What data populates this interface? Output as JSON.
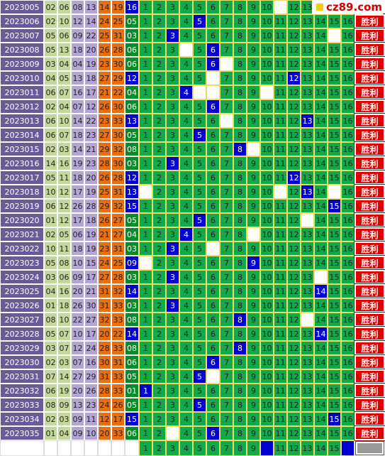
{
  "logo": "cz89.com",
  "rows": [
    {
      "issue": "2023005",
      "reds": [
        "02",
        "06",
        "08",
        "13",
        "14",
        "19"
      ],
      "blue": "16",
      "cells": [
        1,
        2,
        3,
        4,
        5,
        6,
        7,
        8,
        9,
        10,
        null,
        12,
        13,
        14,
        15,
        16
      ]
    },
    {
      "issue": "2023006",
      "reds": [
        "02",
        "10",
        "12",
        "14",
        "24",
        "25"
      ],
      "blue": "05",
      "cells": [
        1,
        2,
        3,
        4,
        5,
        6,
        7,
        8,
        9,
        10,
        11,
        12,
        13,
        14,
        15,
        16
      ],
      "result": "胜利"
    },
    {
      "issue": "2023007",
      "reds": [
        "05",
        "06",
        "09",
        "22",
        "25",
        "31"
      ],
      "blue": "03",
      "cells": [
        1,
        2,
        3,
        4,
        5,
        6,
        7,
        8,
        9,
        10,
        11,
        12,
        13,
        14,
        null,
        16
      ],
      "result": "胜利"
    },
    {
      "issue": "2023008",
      "reds": [
        "05",
        "13",
        "18",
        "20",
        "26",
        "28"
      ],
      "blue": "06",
      "cells": [
        1,
        2,
        3,
        null,
        5,
        6,
        7,
        8,
        9,
        10,
        11,
        12,
        13,
        14,
        15,
        16
      ],
      "result": "胜利"
    },
    {
      "issue": "2023009",
      "reds": [
        "03",
        "04",
        "04",
        "19",
        "23",
        "30"
      ],
      "blue": "06",
      "cells": [
        1,
        2,
        3,
        4,
        5,
        6,
        null,
        8,
        9,
        10,
        11,
        12,
        13,
        14,
        15,
        16
      ],
      "result": "胜利"
    },
    {
      "issue": "2023010",
      "reds": [
        "04",
        "05",
        "13",
        "18",
        "27",
        "29"
      ],
      "blue": "12",
      "cells": [
        1,
        2,
        3,
        4,
        5,
        null,
        7,
        8,
        9,
        10,
        11,
        12,
        13,
        14,
        15,
        16
      ],
      "result": "胜利"
    },
    {
      "issue": "2023011",
      "reds": [
        "06",
        "07",
        "16",
        "17",
        "21",
        "22"
      ],
      "blue": "04",
      "cells": [
        1,
        2,
        3,
        4,
        null,
        null,
        7,
        8,
        9,
        null,
        11,
        12,
        13,
        14,
        15,
        16
      ],
      "result": "胜利"
    },
    {
      "issue": "2023012",
      "reds": [
        "02",
        "04",
        "07",
        "12",
        "26",
        "30"
      ],
      "blue": "06",
      "cells": [
        1,
        2,
        3,
        4,
        5,
        6,
        7,
        8,
        9,
        10,
        11,
        12,
        13,
        14,
        15,
        16
      ],
      "result": "胜利"
    },
    {
      "issue": "2023013",
      "reds": [
        "06",
        "10",
        "14",
        "22",
        "23",
        "33"
      ],
      "blue": "13",
      "cells": [
        1,
        2,
        3,
        4,
        5,
        6,
        null,
        8,
        9,
        10,
        11,
        12,
        13,
        14,
        15,
        16
      ],
      "result": "胜利"
    },
    {
      "issue": "2023014",
      "reds": [
        "06",
        "07",
        "18",
        "23",
        "27",
        "30"
      ],
      "blue": "05",
      "cells": [
        1,
        2,
        3,
        4,
        5,
        6,
        7,
        8,
        9,
        10,
        11,
        12,
        13,
        14,
        15,
        16
      ],
      "result": "胜利"
    },
    {
      "issue": "2023015",
      "reds": [
        "02",
        "03",
        "14",
        "21",
        "29",
        "32"
      ],
      "blue": "08",
      "cells": [
        1,
        2,
        3,
        4,
        5,
        6,
        7,
        8,
        null,
        10,
        11,
        12,
        13,
        14,
        15,
        16
      ],
      "result": "胜利"
    },
    {
      "issue": "2023016",
      "reds": [
        "14",
        "16",
        "19",
        "23",
        "28",
        "30"
      ],
      "blue": "03",
      "cells": [
        1,
        2,
        3,
        4,
        5,
        6,
        7,
        8,
        9,
        10,
        11,
        12,
        13,
        14,
        15,
        16
      ],
      "result": "胜利"
    },
    {
      "issue": "2023017",
      "reds": [
        "05",
        "11",
        "18",
        "20",
        "26",
        "28"
      ],
      "blue": "12",
      "cells": [
        1,
        2,
        3,
        4,
        5,
        6,
        7,
        8,
        9,
        10,
        11,
        12,
        13,
        14,
        15,
        16
      ],
      "result": "胜利"
    },
    {
      "issue": "2023018",
      "reds": [
        "10",
        "12",
        "17",
        "19",
        "25",
        "31"
      ],
      "blue": "13",
      "cells": [
        null,
        2,
        3,
        4,
        5,
        6,
        7,
        8,
        9,
        10,
        null,
        12,
        13,
        14,
        null,
        16
      ],
      "result": "胜利"
    },
    {
      "issue": "2023019",
      "reds": [
        "06",
        "12",
        "26",
        "28",
        "29",
        "32"
      ],
      "blue": "15",
      "cells": [
        1,
        2,
        3,
        4,
        5,
        6,
        7,
        8,
        9,
        10,
        11,
        12,
        13,
        14,
        15,
        16
      ],
      "result": "胜利"
    },
    {
      "issue": "2023020",
      "reds": [
        "01",
        "12",
        "17",
        "18",
        "26",
        "27"
      ],
      "blue": "05",
      "cells": [
        1,
        2,
        3,
        4,
        5,
        6,
        7,
        8,
        9,
        10,
        11,
        12,
        null,
        14,
        15,
        16
      ],
      "result": "胜利"
    },
    {
      "issue": "2023021",
      "reds": [
        "02",
        "05",
        "06",
        "19",
        "21",
        "27"
      ],
      "blue": "04",
      "cells": [
        1,
        2,
        3,
        4,
        5,
        6,
        7,
        8,
        null,
        10,
        11,
        12,
        13,
        14,
        15,
        16
      ],
      "result": "胜利"
    },
    {
      "issue": "2023022",
      "reds": [
        "10",
        "11",
        "18",
        "19",
        "23",
        "31"
      ],
      "blue": "03",
      "cells": [
        1,
        2,
        3,
        4,
        5,
        null,
        7,
        8,
        9,
        10,
        11,
        12,
        13,
        14,
        15,
        16
      ],
      "result": "胜利"
    },
    {
      "issue": "2023023",
      "reds": [
        "05",
        "08",
        "10",
        "15",
        "24",
        "25"
      ],
      "blue": "09",
      "cells": [
        null,
        2,
        3,
        4,
        5,
        6,
        7,
        8,
        9,
        10,
        11,
        12,
        13,
        14,
        15,
        16
      ],
      "result": "胜利"
    },
    {
      "issue": "2023024",
      "reds": [
        "03",
        "06",
        "09",
        "17",
        "27",
        "28"
      ],
      "blue": "03",
      "cells": [
        1,
        2,
        3,
        4,
        5,
        6,
        7,
        8,
        9,
        10,
        11,
        12,
        13,
        null,
        15,
        16
      ],
      "result": "胜利"
    },
    {
      "issue": "2023025",
      "reds": [
        "04",
        "16",
        "20",
        "21",
        "31",
        "32"
      ],
      "blue": "14",
      "cells": [
        1,
        2,
        3,
        4,
        5,
        6,
        7,
        8,
        9,
        10,
        11,
        12,
        13,
        14,
        15,
        16
      ],
      "result": "胜利"
    },
    {
      "issue": "2023026",
      "reds": [
        "01",
        "18",
        "26",
        "30",
        "31",
        "33"
      ],
      "blue": "03",
      "cells": [
        1,
        2,
        3,
        4,
        5,
        6,
        7,
        8,
        9,
        10,
        11,
        12,
        13,
        14,
        15,
        16
      ],
      "result": "胜利"
    },
    {
      "issue": "2023027",
      "reds": [
        "08",
        "10",
        "22",
        "27",
        "32",
        "33"
      ],
      "blue": "08",
      "cells": [
        1,
        2,
        3,
        4,
        5,
        6,
        7,
        8,
        9,
        10,
        11,
        12,
        null,
        14,
        15,
        16
      ],
      "result": "胜利"
    },
    {
      "issue": "2023028",
      "reds": [
        "05",
        "07",
        "10",
        "17",
        "20",
        "22"
      ],
      "blue": "14",
      "cells": [
        1,
        2,
        3,
        4,
        5,
        6,
        7,
        8,
        9,
        10,
        11,
        12,
        13,
        14,
        15,
        16
      ],
      "result": "胜利"
    },
    {
      "issue": "2023029",
      "reds": [
        "03",
        "07",
        "12",
        "24",
        "28",
        "33"
      ],
      "blue": "08",
      "cells": [
        1,
        2,
        3,
        4,
        5,
        6,
        7,
        8,
        9,
        10,
        11,
        12,
        13,
        14,
        15,
        16
      ],
      "result": "胜利"
    },
    {
      "issue": "2023030",
      "reds": [
        "02",
        "03",
        "07",
        "16",
        "30",
        "31"
      ],
      "blue": "06",
      "cells": [
        1,
        2,
        3,
        4,
        5,
        6,
        7,
        8,
        9,
        10,
        11,
        12,
        13,
        14,
        15,
        16
      ],
      "result": "胜利"
    },
    {
      "issue": "2023031",
      "reds": [
        "07",
        "14",
        "27",
        "29",
        "31",
        "33"
      ],
      "blue": "05",
      "cells": [
        1,
        2,
        3,
        4,
        5,
        null,
        7,
        8,
        9,
        10,
        11,
        12,
        13,
        14,
        15,
        16
      ],
      "result": "胜利"
    },
    {
      "issue": "2023032",
      "reds": [
        "06",
        "19",
        "20",
        "26",
        "28",
        "33"
      ],
      "blue": "01",
      "cells": [
        1,
        2,
        3,
        4,
        5,
        6,
        7,
        8,
        9,
        10,
        11,
        12,
        13,
        14,
        15,
        16
      ],
      "result": "胜利"
    },
    {
      "issue": "2023033",
      "reds": [
        "08",
        "09",
        "13",
        "23",
        "24",
        "26"
      ],
      "blue": "05",
      "cells": [
        1,
        2,
        3,
        4,
        5,
        6,
        7,
        8,
        9,
        10,
        11,
        12,
        13,
        14,
        15,
        16
      ],
      "result": "胜利"
    },
    {
      "issue": "2023034",
      "reds": [
        "02",
        "03",
        "09",
        "11",
        "12",
        "17"
      ],
      "blue": "15",
      "cells": [
        1,
        2,
        3,
        4,
        5,
        6,
        7,
        8,
        9,
        10,
        11,
        12,
        13,
        14,
        15,
        16
      ],
      "result": "胜利"
    },
    {
      "issue": "2023035",
      "reds": [
        "01",
        "04",
        "09",
        "10",
        "20",
        "33"
      ],
      "blue": "06",
      "cells": [
        1,
        2,
        null,
        4,
        5,
        6,
        7,
        8,
        9,
        10,
        11,
        12,
        13,
        14,
        15,
        16
      ],
      "result": "胜利"
    }
  ],
  "footer_cells": [
    1,
    2,
    3,
    4,
    5,
    6,
    7,
    8,
    9,
    null,
    11,
    12,
    13,
    14,
    15,
    null
  ]
}
